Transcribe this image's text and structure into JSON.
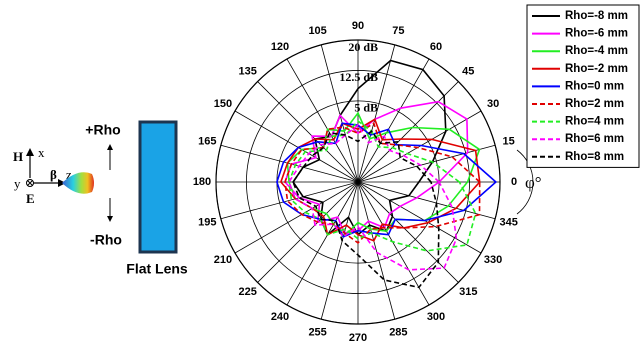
{
  "schematic": {
    "h_label": "H",
    "x_label": "x",
    "beta_label": "β",
    "z_label": "z",
    "y_label": "y",
    "e_label": "E",
    "plus_rho": "+Rho",
    "minus_rho": "-Rho",
    "lens_label": "Flat Lens"
  },
  "chart_data": {
    "type": "polar",
    "theta_label": "φ°",
    "theta": [
      0,
      15,
      30,
      45,
      60,
      75,
      90,
      105,
      120,
      135,
      150,
      165,
      180,
      195,
      210,
      225,
      240,
      255,
      270,
      285,
      300,
      315,
      330,
      345
    ],
    "thetaticks": [
      0,
      15,
      30,
      45,
      60,
      75,
      90,
      105,
      120,
      135,
      150,
      165,
      180,
      195,
      210,
      225,
      240,
      255,
      270,
      285,
      300,
      315,
      330,
      345
    ],
    "rlim": [
      -15,
      20
    ],
    "rticks": [
      {
        "value": 5,
        "label": "5 dB"
      },
      {
        "value": 12.5,
        "label": "12.5 dB"
      },
      {
        "value": 20,
        "label": "20 dB"
      }
    ],
    "grid": true,
    "legend": "top-right",
    "series": [
      {
        "name": "Rho=-8 mm",
        "color": "#000000",
        "dashed": false,
        "values": [
          0,
          4,
          10,
          15,
          17,
          16,
          8,
          2,
          -2,
          0,
          -4,
          -1,
          1,
          -1,
          -5,
          -2,
          0,
          -6,
          -2,
          -4,
          -1,
          -3,
          -6,
          -2
        ]
      },
      {
        "name": "Rho=-6 mm",
        "color": "#ff00ff",
        "dashed": false,
        "values": [
          5,
          13,
          16,
          13,
          6,
          1,
          -3,
          2,
          -2,
          1,
          -3,
          2,
          3,
          0,
          -4,
          -1,
          -5,
          -2,
          -3,
          -5,
          -2,
          -4,
          -3,
          0
        ]
      },
      {
        "name": "Rho=-4 mm",
        "color": "#22ee22",
        "dashed": false,
        "values": [
          12,
          16,
          11,
          4,
          -1,
          -4,
          2,
          -2,
          0,
          -3,
          1,
          3,
          2,
          1,
          -2,
          -4,
          -3,
          -1,
          -5,
          -3,
          -1,
          -2,
          4,
          8
        ]
      },
      {
        "name": "Rho=-2 mm",
        "color": "#e00000",
        "dashed": false,
        "values": [
          15,
          15,
          6,
          0,
          -3,
          1,
          -2,
          0,
          -3,
          0,
          2,
          3,
          4,
          1,
          -2,
          -3,
          0,
          -4,
          -2,
          0,
          -3,
          1,
          5,
          10
        ]
      },
      {
        "name": "Rho=0 mm",
        "color": "#0000ff",
        "dashed": false,
        "values": [
          19,
          12,
          3,
          -2,
          0,
          -3,
          -1,
          0,
          -4,
          -1,
          2,
          4,
          5,
          4,
          1,
          -2,
          -4,
          -1,
          -3,
          -2,
          0,
          -2,
          4,
          12
        ]
      },
      {
        "name": "Rho=2 mm",
        "color": "#e00000",
        "dashed": true,
        "values": [
          15,
          9,
          2,
          -2,
          -4,
          0,
          -3,
          -1,
          0,
          -3,
          1,
          2,
          3,
          3,
          1,
          -1,
          -3,
          -2,
          0,
          -3,
          -2,
          1,
          7,
          16
        ]
      },
      {
        "name": "Rho=4 mm",
        "color": "#22ee22",
        "dashed": true,
        "values": [
          10,
          4,
          -1,
          -3,
          -5,
          -2,
          0,
          -3,
          -2,
          -4,
          0,
          1,
          2,
          2,
          0,
          -2,
          0,
          -3,
          -1,
          -2,
          2,
          9,
          16,
          15
        ]
      },
      {
        "name": "Rho=6 mm",
        "color": "#ff00ff",
        "dashed": true,
        "values": [
          5,
          1,
          -2,
          -4,
          -2,
          -5,
          -1,
          -3,
          -4,
          -2,
          -1,
          0,
          2,
          1,
          -2,
          0,
          -3,
          -1,
          -4,
          3,
          10,
          15,
          13,
          9
        ]
      },
      {
        "name": "Rho=8 mm",
        "color": "#000000",
        "dashed": true,
        "values": [
          3,
          0,
          -3,
          -1,
          -4,
          -2,
          -5,
          -3,
          -1,
          -3,
          -2,
          -1,
          1,
          0,
          -3,
          -2,
          -4,
          0,
          3,
          10,
          15,
          13,
          8,
          5
        ]
      }
    ]
  }
}
